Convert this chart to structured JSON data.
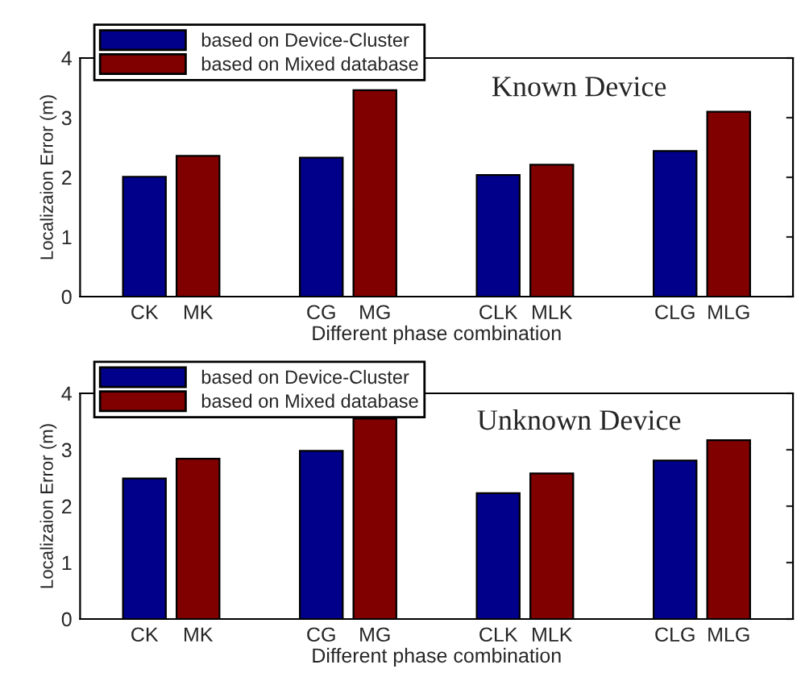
{
  "chart_data": [
    {
      "type": "bar",
      "title": "Known Device",
      "xlabel": "Different phase combination",
      "ylabel": "Localizaion Error (m)",
      "categories": [
        "CK",
        "MK",
        "CG",
        "MG",
        "CLK",
        "MLK",
        "CLG",
        "MLG"
      ],
      "series": [
        {
          "name": "based on Device-Cluster",
          "color": "#00008b",
          "values": [
            2.01,
            null,
            2.33,
            null,
            2.04,
            null,
            2.44,
            null
          ]
        },
        {
          "name": "based on Mixed database",
          "color": "#800000",
          "values": [
            null,
            2.36,
            null,
            3.46,
            null,
            2.21,
            null,
            3.1
          ]
        }
      ],
      "ylim": [
        0,
        4
      ],
      "yticks": [
        0,
        1,
        2,
        3,
        4
      ],
      "legend": "top left"
    },
    {
      "type": "bar",
      "title": "Unknown Device",
      "xlabel": "Different phase combination",
      "ylabel": "Localizaion Error (m)",
      "categories": [
        "CK",
        "MK",
        "CG",
        "MG",
        "CLK",
        "MLK",
        "CLG",
        "MLG"
      ],
      "series": [
        {
          "name": "based on Device-Cluster",
          "color": "#00008b",
          "values": [
            2.49,
            null,
            2.98,
            null,
            2.23,
            null,
            2.81,
            null
          ]
        },
        {
          "name": "based on Mixed database",
          "color": "#800000",
          "values": [
            null,
            2.84,
            null,
            3.55,
            null,
            2.58,
            null,
            3.17
          ]
        }
      ],
      "ylim": [
        0,
        4
      ],
      "yticks": [
        0,
        1,
        2,
        3,
        4
      ],
      "legend": "top left"
    }
  ]
}
